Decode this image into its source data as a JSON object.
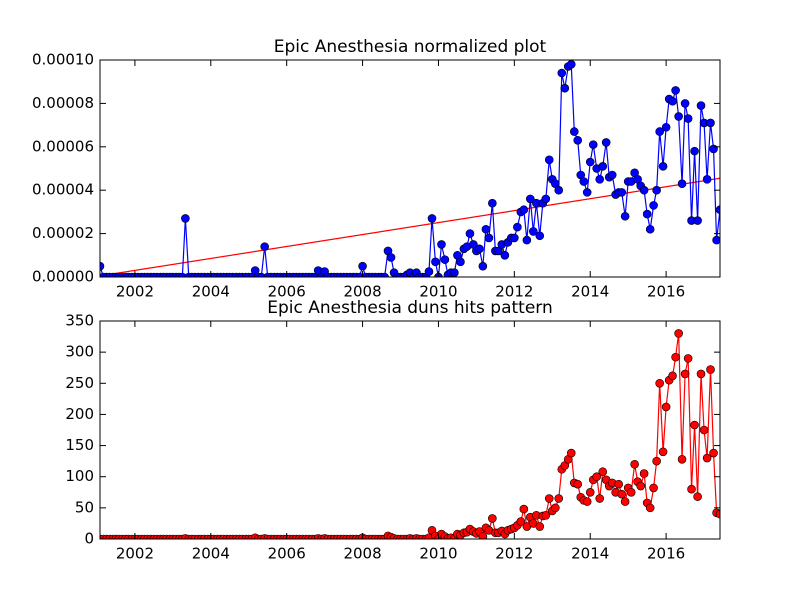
{
  "chart_data": [
    {
      "type": "line",
      "title": "Epic Anesthesia normalized plot",
      "x": [
        2001.08,
        2001.17,
        2001.25,
        2001.33,
        2001.42,
        2001.5,
        2001.58,
        2001.67,
        2001.75,
        2001.83,
        2001.92,
        2002,
        2002.08,
        2002.17,
        2002.25,
        2002.33,
        2002.42,
        2002.5,
        2002.58,
        2002.67,
        2002.75,
        2002.83,
        2002.92,
        2003,
        2003.08,
        2003.17,
        2003.25,
        2003.33,
        2003.42,
        2003.5,
        2003.58,
        2003.67,
        2003.75,
        2003.83,
        2003.92,
        2004,
        2004.08,
        2004.17,
        2004.25,
        2004.33,
        2004.42,
        2004.5,
        2004.58,
        2004.67,
        2004.75,
        2004.83,
        2004.92,
        2005,
        2005.08,
        2005.17,
        2005.25,
        2005.33,
        2005.42,
        2005.5,
        2005.58,
        2005.67,
        2005.75,
        2005.83,
        2005.92,
        2006,
        2006.08,
        2006.17,
        2006.25,
        2006.33,
        2006.42,
        2006.5,
        2006.58,
        2006.67,
        2006.75,
        2006.83,
        2006.92,
        2007,
        2007.08,
        2007.17,
        2007.25,
        2007.33,
        2007.42,
        2007.5,
        2007.58,
        2007.67,
        2007.75,
        2007.83,
        2007.92,
        2008,
        2008.08,
        2008.17,
        2008.25,
        2008.33,
        2008.42,
        2008.5,
        2008.58,
        2008.67,
        2008.75,
        2008.83,
        2008.92,
        2009,
        2009.08,
        2009.17,
        2009.25,
        2009.33,
        2009.42,
        2009.5,
        2009.58,
        2009.67,
        2009.75,
        2009.83,
        2009.92,
        2010,
        2010.08,
        2010.17,
        2010.25,
        2010.33,
        2010.42,
        2010.5,
        2010.58,
        2010.67,
        2010.75,
        2010.83,
        2010.92,
        2011,
        2011.08,
        2011.17,
        2011.25,
        2011.33,
        2011.42,
        2011.5,
        2011.58,
        2011.67,
        2011.75,
        2011.83,
        2011.92,
        2012,
        2012.08,
        2012.17,
        2012.25,
        2012.33,
        2012.42,
        2012.5,
        2012.58,
        2012.67,
        2012.75,
        2012.83,
        2012.92,
        2013,
        2013.08,
        2013.17,
        2013.25,
        2013.33,
        2013.42,
        2013.5,
        2013.58,
        2013.67,
        2013.75,
        2013.83,
        2013.92,
        2014,
        2014.08,
        2014.17,
        2014.25,
        2014.33,
        2014.42,
        2014.5,
        2014.58,
        2014.67,
        2014.75,
        2014.83,
        2014.92,
        2015,
        2015.08,
        2015.17,
        2015.25,
        2015.33,
        2015.42,
        2015.5,
        2015.58,
        2015.67,
        2015.75,
        2015.83,
        2015.92,
        2016,
        2016.08,
        2016.17,
        2016.25,
        2016.33,
        2016.42,
        2016.5,
        2016.58,
        2016.67,
        2016.75,
        2016.83,
        2016.92,
        2017,
        2017.08,
        2017.17,
        2017.25,
        2017.33,
        2017.42
      ],
      "series": [
        {
          "color": "#0000ff",
          "values": [
            5e-06,
            0,
            0,
            0,
            0,
            0,
            0,
            0,
            0,
            0,
            0,
            0,
            0,
            0,
            0,
            0,
            0,
            0,
            0,
            0,
            0,
            0,
            0,
            0,
            0,
            0,
            0,
            2.7e-05,
            0,
            0,
            0,
            0,
            0,
            0,
            0,
            0,
            0,
            0,
            0,
            0,
            0,
            0,
            0,
            0,
            0,
            0,
            0,
            0,
            0,
            3e-06,
            0,
            0,
            1.4e-05,
            0,
            0,
            0,
            0,
            0,
            0,
            0,
            0,
            0,
            0,
            0,
            0,
            0,
            0,
            0,
            0,
            3e-06,
            0,
            2.5e-06,
            0,
            0,
            0,
            0,
            0,
            0,
            0,
            0,
            0,
            0,
            0,
            5e-06,
            0,
            0,
            0,
            0,
            0,
            0,
            0,
            1.2e-05,
            9e-06,
            2e-06,
            0,
            0,
            0,
            1e-06,
            2e-06,
            0,
            2e-06,
            0,
            0,
            0,
            2.5e-06,
            2.7e-05,
            7e-06,
            0,
            1.5e-05,
            8e-06,
            1e-06,
            2e-06,
            2e-06,
            1e-05,
            7e-06,
            1.3e-05,
            1.4e-05,
            2e-05,
            1.5e-05,
            1.2e-05,
            1.3e-05,
            5e-06,
            2.2e-05,
            1.8e-05,
            3.4e-05,
            1.2e-05,
            1.2e-05,
            1.5e-05,
            1e-05,
            1.6e-05,
            1.8e-05,
            1.8e-05,
            2.3e-05,
            3e-05,
            3.1e-05,
            1.7e-05,
            3.6e-05,
            2.1e-05,
            3.4e-05,
            1.9e-05,
            3.4e-05,
            3.6e-05,
            5.4e-05,
            4.5e-05,
            4.3e-05,
            4e-05,
            9.4e-05,
            8.7e-05,
            9.7e-05,
            9.8e-05,
            6.7e-05,
            6.3e-05,
            4.7e-05,
            4.4e-05,
            3.9e-05,
            5.3e-05,
            6.1e-05,
            5e-05,
            4.5e-05,
            5.1e-05,
            6.2e-05,
            4.6e-05,
            4.7e-05,
            3.8e-05,
            3.9e-05,
            3.9e-05,
            2.8e-05,
            4.4e-05,
            4.4e-05,
            4.8e-05,
            4.5e-05,
            4.2e-05,
            4e-05,
            2.9e-05,
            2.2e-05,
            3.3e-05,
            4e-05,
            6.7e-05,
            5.1e-05,
            6.9e-05,
            8.2e-05,
            8.1e-05,
            8.6e-05,
            7.4e-05,
            4.3e-05,
            8e-05,
            7.3e-05,
            2.6e-05,
            5.8e-05,
            2.6e-05,
            7.9e-05,
            7.1e-05,
            4.5e-05,
            7.1e-05,
            5.9e-05,
            1.7e-05,
            3.1e-05
          ]
        }
      ],
      "fit_line": {
        "color": "#ff0000",
        "x": [
          2001.08,
          2017.42
        ],
        "values": [
          5e-07,
          4.55e-05
        ]
      },
      "xlim": [
        2001.08,
        2017.42
      ],
      "xticks": [
        2002,
        2004,
        2006,
        2008,
        2010,
        2012,
        2014,
        2016
      ],
      "ylim": [
        0,
        0.0001
      ],
      "yticks": [
        {
          "value": 0,
          "label": "0.00000"
        },
        {
          "value": 2e-05,
          "label": "0.00002"
        },
        {
          "value": 4e-05,
          "label": "0.00004"
        },
        {
          "value": 6e-05,
          "label": "0.00006"
        },
        {
          "value": 8e-05,
          "label": "0.00008"
        },
        {
          "value": 0.0001,
          "label": "0.00010"
        }
      ]
    },
    {
      "type": "line",
      "title": "Epic Anesthesia duns hits pattern",
      "x": [
        2001.08,
        2001.17,
        2001.25,
        2001.33,
        2001.42,
        2001.5,
        2001.58,
        2001.67,
        2001.75,
        2001.83,
        2001.92,
        2002,
        2002.08,
        2002.17,
        2002.25,
        2002.33,
        2002.42,
        2002.5,
        2002.58,
        2002.67,
        2002.75,
        2002.83,
        2002.92,
        2003,
        2003.08,
        2003.17,
        2003.25,
        2003.33,
        2003.42,
        2003.5,
        2003.58,
        2003.67,
        2003.75,
        2003.83,
        2003.92,
        2004,
        2004.08,
        2004.17,
        2004.25,
        2004.33,
        2004.42,
        2004.5,
        2004.58,
        2004.67,
        2004.75,
        2004.83,
        2004.92,
        2005,
        2005.08,
        2005.17,
        2005.25,
        2005.33,
        2005.42,
        2005.5,
        2005.58,
        2005.67,
        2005.75,
        2005.83,
        2005.92,
        2006,
        2006.08,
        2006.17,
        2006.25,
        2006.33,
        2006.42,
        2006.5,
        2006.58,
        2006.67,
        2006.75,
        2006.83,
        2006.92,
        2007,
        2007.08,
        2007.17,
        2007.25,
        2007.33,
        2007.42,
        2007.5,
        2007.58,
        2007.67,
        2007.75,
        2007.83,
        2007.92,
        2008,
        2008.08,
        2008.17,
        2008.25,
        2008.33,
        2008.42,
        2008.5,
        2008.58,
        2008.67,
        2008.75,
        2008.83,
        2008.92,
        2009,
        2009.08,
        2009.17,
        2009.25,
        2009.33,
        2009.42,
        2009.5,
        2009.58,
        2009.67,
        2009.75,
        2009.83,
        2009.92,
        2010,
        2010.08,
        2010.17,
        2010.25,
        2010.33,
        2010.42,
        2010.5,
        2010.58,
        2010.67,
        2010.75,
        2010.83,
        2010.92,
        2011,
        2011.08,
        2011.17,
        2011.25,
        2011.33,
        2011.42,
        2011.5,
        2011.58,
        2011.67,
        2011.75,
        2011.83,
        2011.92,
        2012,
        2012.08,
        2012.17,
        2012.25,
        2012.33,
        2012.42,
        2012.5,
        2012.58,
        2012.67,
        2012.75,
        2012.83,
        2012.92,
        2013,
        2013.08,
        2013.17,
        2013.25,
        2013.33,
        2013.42,
        2013.5,
        2013.58,
        2013.67,
        2013.75,
        2013.83,
        2013.92,
        2014,
        2014.08,
        2014.17,
        2014.25,
        2014.33,
        2014.42,
        2014.5,
        2014.58,
        2014.67,
        2014.75,
        2014.83,
        2014.92,
        2015,
        2015.08,
        2015.17,
        2015.25,
        2015.33,
        2015.42,
        2015.5,
        2015.58,
        2015.67,
        2015.75,
        2015.83,
        2015.92,
        2016,
        2016.08,
        2016.17,
        2016.25,
        2016.33,
        2016.42,
        2016.5,
        2016.58,
        2016.67,
        2016.75,
        2016.83,
        2016.92,
        2017,
        2017.08,
        2017.17,
        2017.25,
        2017.33,
        2017.42
      ],
      "series": [
        {
          "color": "#ff0000",
          "values": [
            0,
            0,
            0,
            0,
            0,
            0,
            0,
            0,
            0,
            0,
            0,
            0,
            0,
            0,
            0,
            0,
            0,
            0,
            0,
            0,
            0,
            0,
            0,
            0,
            0,
            0,
            0,
            1,
            0,
            0,
            0,
            0,
            0,
            0,
            0,
            0,
            0,
            0,
            0,
            0,
            0,
            0,
            0,
            0,
            0,
            0,
            0,
            0,
            0,
            2,
            0,
            0,
            1,
            0,
            0,
            0,
            0,
            0,
            0,
            0,
            0,
            0,
            0,
            0,
            0,
            0,
            0,
            0,
            0,
            1,
            0,
            1,
            0,
            0,
            0,
            0,
            0,
            0,
            0,
            0,
            0,
            0,
            0,
            2,
            0,
            0,
            0,
            0,
            0,
            0,
            0,
            5,
            3,
            1,
            0,
            0,
            0,
            0,
            1,
            0,
            1,
            0,
            0,
            0,
            2,
            14,
            5,
            0,
            8,
            4,
            1,
            2,
            1,
            8,
            6,
            10,
            11,
            16,
            12,
            9,
            12,
            4,
            18,
            14,
            33,
            10,
            10,
            13,
            8,
            14,
            16,
            18,
            22,
            28,
            48,
            20,
            35,
            25,
            38,
            20,
            37,
            38,
            65,
            45,
            50,
            65,
            112,
            118,
            128,
            138,
            90,
            88,
            67,
            62,
            60,
            75,
            95,
            100,
            65,
            108,
            95,
            85,
            90,
            75,
            88,
            72,
            60,
            82,
            75,
            120,
            92,
            85,
            105,
            58,
            50,
            82,
            125,
            250,
            140,
            212,
            255,
            262,
            292,
            330,
            128,
            265,
            290,
            80,
            183,
            68,
            265,
            175,
            130,
            272,
            138,
            42,
            40
          ]
        }
      ],
      "xlim": [
        2001.08,
        2017.42
      ],
      "xticks": [
        2002,
        2004,
        2006,
        2008,
        2010,
        2012,
        2014,
        2016
      ],
      "ylim": [
        0,
        350
      ],
      "yticks": [
        0,
        50,
        100,
        150,
        200,
        250,
        300,
        350
      ]
    }
  ]
}
